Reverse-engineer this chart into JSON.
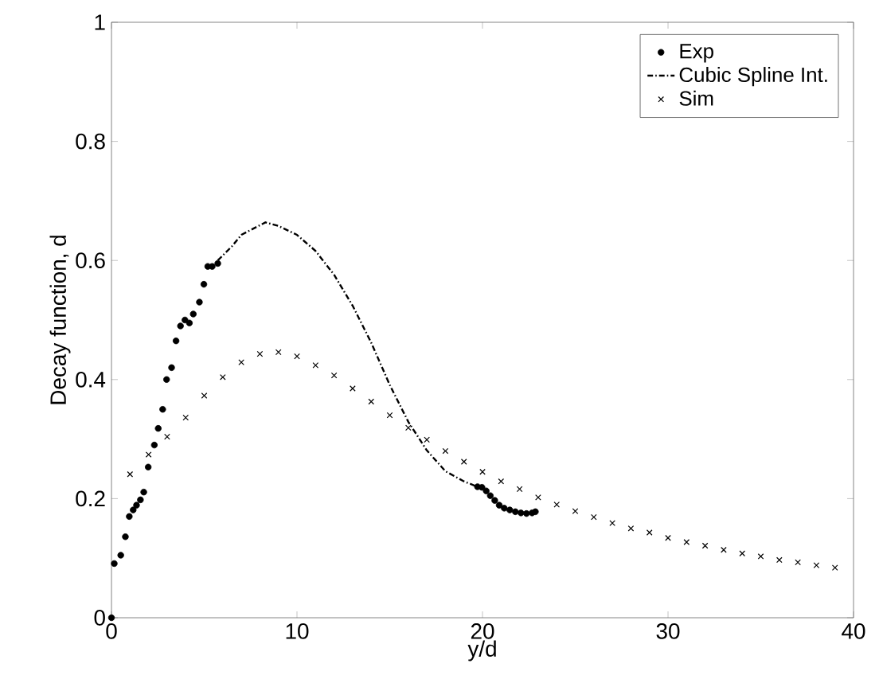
{
  "chart_data": {
    "type": "scatter",
    "xlabel": "y/d",
    "ylabel": "Decay function, d",
    "xlim": [
      0,
      40
    ],
    "ylim": [
      0,
      1
    ],
    "xticks": [
      0,
      10,
      20,
      30,
      40
    ],
    "yticks": [
      0,
      0.2,
      0.4,
      0.6,
      0.8,
      1
    ],
    "grid": false,
    "legend": "top right",
    "series": [
      {
        "name": "Exp",
        "marker": "circle",
        "color": "#000000",
        "x": [
          0,
          0.15,
          0.5,
          0.75,
          0.96,
          1.17,
          1.35,
          1.56,
          1.74,
          1.98,
          2.31,
          2.52,
          2.76,
          2.97,
          3.24,
          3.48,
          3.72,
          3.96,
          4.2,
          4.41,
          4.74,
          4.98,
          5.19,
          5.43,
          5.73,
          19.73,
          19.97,
          20.2,
          20.42,
          20.66,
          20.9,
          21.17,
          21.47,
          21.77,
          22.07,
          22.37,
          22.67,
          22.85
        ],
        "values": [
          0,
          0.091,
          0.105,
          0.136,
          0.17,
          0.181,
          0.189,
          0.198,
          0.211,
          0.253,
          0.29,
          0.318,
          0.35,
          0.4,
          0.42,
          0.465,
          0.49,
          0.5,
          0.495,
          0.51,
          0.53,
          0.56,
          0.59,
          0.59,
          0.595,
          0.22,
          0.219,
          0.213,
          0.205,
          0.197,
          0.189,
          0.184,
          0.181,
          0.178,
          0.176,
          0.175,
          0.176,
          0.178
        ]
      },
      {
        "name": "Cubic Spline Int.",
        "type": "line",
        "marker": "none",
        "line_style": "dashdot",
        "color": "#000000",
        "x": [
          5.73,
          6.5,
          7,
          8.3,
          9,
          10,
          11,
          12,
          13,
          14,
          15,
          16,
          17,
          18,
          19,
          19.73
        ],
        "values": [
          0.6,
          0.624,
          0.643,
          0.664,
          0.658,
          0.643,
          0.616,
          0.576,
          0.524,
          0.462,
          0.391,
          0.329,
          0.281,
          0.246,
          0.229,
          0.22
        ]
      },
      {
        "name": "Sim",
        "marker": "cross",
        "color": "#000000",
        "x": [
          1,
          2,
          3,
          4,
          5,
          6,
          7,
          8,
          9,
          10,
          11,
          12,
          13,
          14,
          15,
          16,
          17,
          18,
          19,
          20,
          21,
          22,
          23,
          24,
          25,
          26,
          27,
          28,
          29,
          30,
          31,
          32,
          33,
          34,
          35,
          36,
          37,
          38,
          39
        ],
        "values": [
          0.241,
          0.274,
          0.304,
          0.336,
          0.373,
          0.404,
          0.429,
          0.443,
          0.446,
          0.439,
          0.424,
          0.407,
          0.385,
          0.363,
          0.34,
          0.319,
          0.299,
          0.28,
          0.262,
          0.245,
          0.229,
          0.216,
          0.202,
          0.19,
          0.179,
          0.169,
          0.159,
          0.15,
          0.143,
          0.134,
          0.127,
          0.121,
          0.114,
          0.108,
          0.103,
          0.097,
          0.093,
          0.088,
          0.084
        ]
      }
    ]
  }
}
